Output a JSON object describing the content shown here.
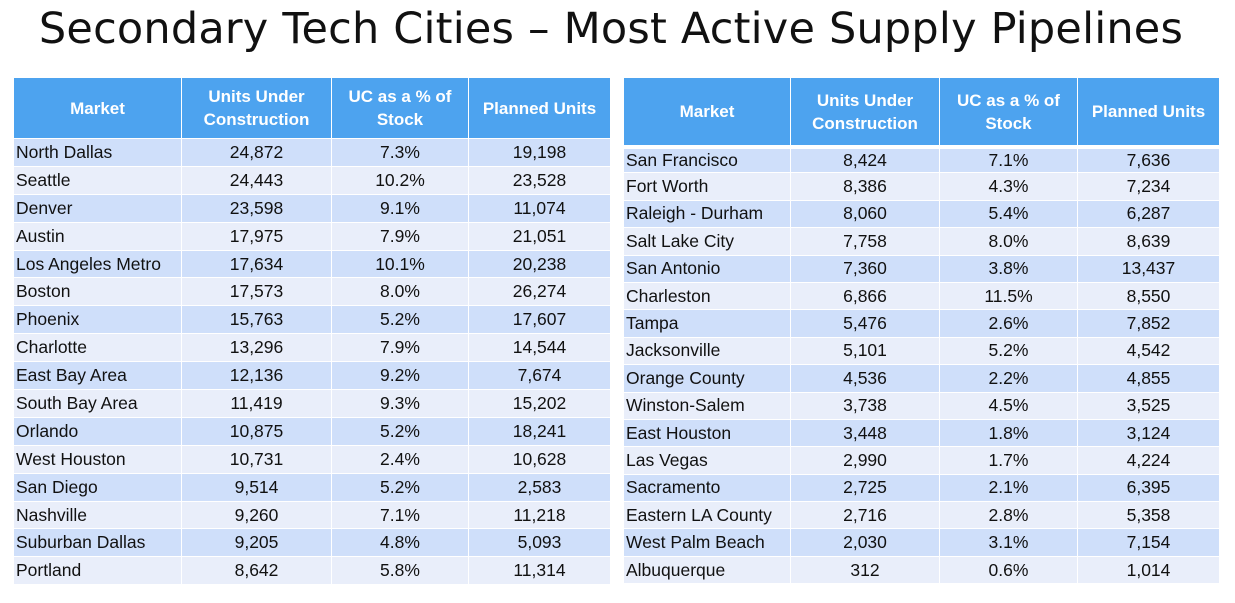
{
  "title": "Secondary Tech Cities – Most Active Supply Pipelines",
  "columns": {
    "market": "Market",
    "units_under_construction": "Units Under Construction",
    "uc_pct_of_stock": "UC as a % of Stock",
    "planned_units": "Planned Units"
  },
  "left_table": {
    "rows": [
      {
        "market": "North Dallas",
        "uc": "24,872",
        "pct": "7.3%",
        "planned": "19,198"
      },
      {
        "market": "Seattle",
        "uc": "24,443",
        "pct": "10.2%",
        "planned": "23,528"
      },
      {
        "market": "Denver",
        "uc": "23,598",
        "pct": "9.1%",
        "planned": "11,074"
      },
      {
        "market": "Austin",
        "uc": "17,975",
        "pct": "7.9%",
        "planned": "21,051"
      },
      {
        "market": "Los Angeles Metro",
        "uc": "17,634",
        "pct": "10.1%",
        "planned": "20,238"
      },
      {
        "market": "Boston",
        "uc": "17,573",
        "pct": "8.0%",
        "planned": "26,274"
      },
      {
        "market": "Phoenix",
        "uc": "15,763",
        "pct": "5.2%",
        "planned": "17,607"
      },
      {
        "market": "Charlotte",
        "uc": "13,296",
        "pct": "7.9%",
        "planned": "14,544"
      },
      {
        "market": "East Bay Area",
        "uc": "12,136",
        "pct": "9.2%",
        "planned": "7,674"
      },
      {
        "market": "South Bay Area",
        "uc": "11,419",
        "pct": "9.3%",
        "planned": "15,202"
      },
      {
        "market": "Orlando",
        "uc": "10,875",
        "pct": "5.2%",
        "planned": "18,241"
      },
      {
        "market": "West Houston",
        "uc": "10,731",
        "pct": "2.4%",
        "planned": "10,628"
      },
      {
        "market": "San Diego",
        "uc": "9,514",
        "pct": "5.2%",
        "planned": "2,583"
      },
      {
        "market": "Nashville",
        "uc": "9,260",
        "pct": "7.1%",
        "planned": "11,218"
      },
      {
        "market": "Suburban Dallas",
        "uc": "9,205",
        "pct": "4.8%",
        "planned": "5,093"
      },
      {
        "market": "Portland",
        "uc": "8,642",
        "pct": "5.8%",
        "planned": "11,314"
      }
    ]
  },
  "right_table": {
    "rows": [
      {
        "market": "San Francisco",
        "uc": "8,424",
        "pct": "7.1%",
        "planned": "7,636"
      },
      {
        "market": "Fort Worth",
        "uc": "8,386",
        "pct": "4.3%",
        "planned": "7,234"
      },
      {
        "market": "Raleigh - Durham",
        "uc": "8,060",
        "pct": "5.4%",
        "planned": "6,287"
      },
      {
        "market": "Salt Lake City",
        "uc": "7,758",
        "pct": "8.0%",
        "planned": "8,639"
      },
      {
        "market": "San Antonio",
        "uc": "7,360",
        "pct": "3.8%",
        "planned": "13,437"
      },
      {
        "market": "Charleston",
        "uc": "6,866",
        "pct": "11.5%",
        "planned": "8,550"
      },
      {
        "market": "Tampa",
        "uc": "5,476",
        "pct": "2.6%",
        "planned": "7,852"
      },
      {
        "market": "Jacksonville",
        "uc": "5,101",
        "pct": "5.2%",
        "planned": "4,542"
      },
      {
        "market": "Orange County",
        "uc": "4,536",
        "pct": "2.2%",
        "planned": "4,855"
      },
      {
        "market": "Winston-Salem",
        "uc": "3,738",
        "pct": "4.5%",
        "planned": "3,525"
      },
      {
        "market": "East Houston",
        "uc": "3,448",
        "pct": "1.8%",
        "planned": "3,124"
      },
      {
        "market": "Las Vegas",
        "uc": "2,990",
        "pct": "1.7%",
        "planned": "4,224"
      },
      {
        "market": "Sacramento",
        "uc": "2,725",
        "pct": "2.1%",
        "planned": "6,395"
      },
      {
        "market": "Eastern LA County",
        "uc": "2,716",
        "pct": "2.8%",
        "planned": "5,358"
      },
      {
        "market": "West Palm Beach",
        "uc": "2,030",
        "pct": "3.1%",
        "planned": "7,154"
      },
      {
        "market": "Albuquerque",
        "uc": "312",
        "pct": "0.6%",
        "planned": "1,014"
      }
    ]
  },
  "colors": {
    "header_bg": "#4da3ef",
    "row_band_dark": "#cfdffa",
    "row_band_light": "#e9eefa"
  }
}
